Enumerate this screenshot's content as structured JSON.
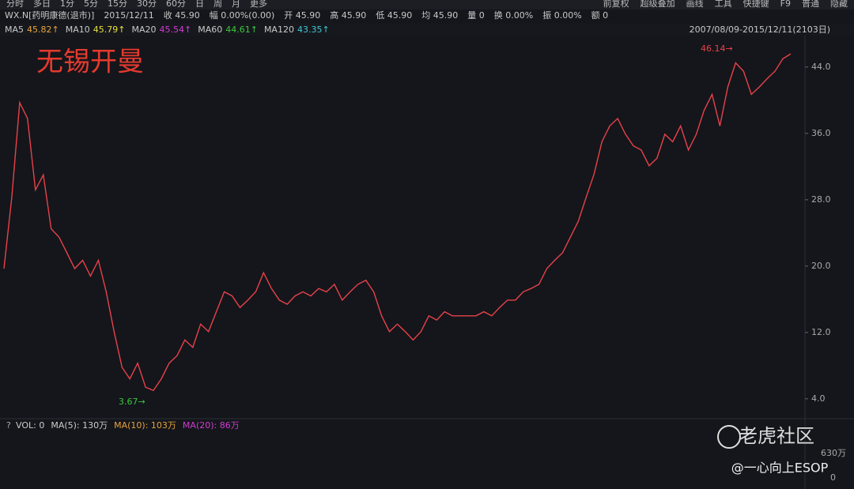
{
  "toolbar_left": [
    "分时",
    "多日",
    "1分",
    "5分",
    "15分",
    "30分",
    "60分",
    "日",
    "周",
    "月",
    "更多"
  ],
  "toolbar_right": [
    "前复权",
    "超级叠加",
    "画线",
    "工具",
    "快捷键",
    "F9",
    "普通",
    "隐藏"
  ],
  "info_bar": [
    "WX.N[药明康德(退市)]",
    "2015/12/11",
    "收 45.90",
    "幅 0.00%(0.00)",
    "开 45.90",
    "高 45.90",
    "低 45.90",
    "均 45.90",
    "量 0",
    "换 0.00%",
    "振 0.00%",
    "额 0"
  ],
  "ma_legend": [
    {
      "name": "MA5",
      "value": "45.82↑",
      "color": "#e8a33c"
    },
    {
      "name": "MA10",
      "value": "45.79↑",
      "color": "#e8e03c"
    },
    {
      "name": "MA20",
      "value": "45.54↑",
      "color": "#d23cd2"
    },
    {
      "name": "MA60",
      "value": "44.61↑",
      "color": "#3cc83c"
    },
    {
      "name": "MA120",
      "value": "43.35↑",
      "color": "#3cc8d2"
    }
  ],
  "date_range": "2007/08/09-2015/12/11(2103日)",
  "chart_data": {
    "type": "line",
    "title": "无锡开曼",
    "color": "#e8414a",
    "values": [
      19.7,
      28.3,
      39.7,
      37.8,
      29.2,
      31,
      24.5,
      23.5,
      21.6,
      19.7,
      20.7,
      18.8,
      20.7,
      16.9,
      12.1,
      7.8,
      6.4,
      8.3,
      5.4,
      5,
      6.4,
      8.3,
      9.2,
      11.1,
      10.2,
      13,
      12.1,
      14.5,
      16.9,
      16.4,
      15,
      15.9,
      16.9,
      19.2,
      17.3,
      15.9,
      15.4,
      16.4,
      16.9,
      16.4,
      17.3,
      16.9,
      17.8,
      15.9,
      16.9,
      17.8,
      18.3,
      16.9,
      14,
      12.1,
      13,
      12.1,
      11.1,
      12.1,
      14,
      13.5,
      14.5,
      14,
      14,
      14,
      14,
      14.5,
      14,
      15,
      15.9,
      15.9,
      16.9,
      17.3,
      17.8,
      19.7,
      20.7,
      21.6,
      23.5,
      25.4,
      28.3,
      31.1,
      35,
      36.9,
      37.8,
      35.9,
      34.5,
      34,
      32.1,
      33,
      35.9,
      35,
      36.9,
      34,
      35.9,
      38.8,
      40.7,
      36.9,
      41.6,
      44.5,
      43.5,
      40.7,
      41.6,
      42.6,
      43.5,
      45,
      45.6
    ],
    "ylim": [
      1.6,
      47.8
    ],
    "yticks": [
      {
        "value": 4,
        "label": "4.0"
      },
      {
        "value": 12,
        "label": "12.0"
      },
      {
        "value": 20,
        "label": "20.0"
      },
      {
        "value": 28,
        "label": "28.0"
      },
      {
        "value": 36,
        "label": "36.0"
      },
      {
        "value": 44,
        "label": "44.0"
      }
    ],
    "annotations": [
      "46.14→",
      "3.67→"
    ]
  },
  "volume_panel": {
    "labels": [
      "VOL: 0",
      "MA(5): 130万",
      "MA(10): 103万",
      "MA(20): 86万"
    ],
    "axis_labels": [
      "630万",
      "0"
    ]
  },
  "watermark": {
    "brand": "老虎社区",
    "author": "@一心向上ESOP"
  }
}
